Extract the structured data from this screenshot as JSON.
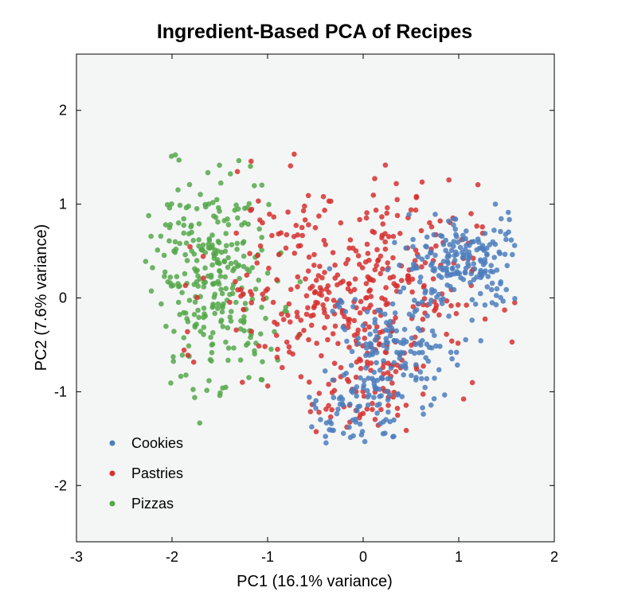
{
  "chart_data": {
    "type": "scatter",
    "title": "Ingredient-Based PCA of Recipes",
    "xlabel": "PC1 (16.1% variance)",
    "ylabel": "PC2 (7.6% variance)",
    "xlim": [
      -3,
      2
    ],
    "ylim": [
      -2.6,
      2.6
    ],
    "x_ticks": [
      -3,
      -2,
      -1,
      0,
      1,
      2
    ],
    "y_ticks": [
      -2,
      -1,
      0,
      1,
      2
    ],
    "grid": false,
    "legend_position": "bottom-left",
    "plot_background": "#f4f6f6",
    "series": [
      {
        "name": "Cookies",
        "color": "#4c7ebd",
        "clusters": [
          {
            "cx": 1.05,
            "cy": 0.4,
            "sx": 0.3,
            "sy": 0.25,
            "n": 190
          },
          {
            "cx": 0.35,
            "cy": -0.55,
            "sx": 0.35,
            "sy": 0.35,
            "n": 150
          },
          {
            "cx": -0.1,
            "cy": -1.15,
            "sx": 0.3,
            "sy": 0.2,
            "n": 70
          }
        ]
      },
      {
        "name": "Pastries",
        "color": "#d7302f",
        "clusters": [
          {
            "cx": -0.5,
            "cy": 0.1,
            "sx": 0.55,
            "sy": 0.5,
            "n": 220
          },
          {
            "cx": 0.3,
            "cy": 0.1,
            "sx": 0.45,
            "sy": 0.55,
            "n": 170
          },
          {
            "cx": 0.0,
            "cy": -1.0,
            "sx": 0.3,
            "sy": 0.3,
            "n": 60
          }
        ]
      },
      {
        "name": "Pizzas",
        "color": "#55a84a",
        "clusters": [
          {
            "cx": -1.6,
            "cy": 0.4,
            "sx": 0.3,
            "sy": 0.5,
            "n": 240
          },
          {
            "cx": -1.4,
            "cy": -0.5,
            "sx": 0.3,
            "sy": 0.35,
            "n": 60
          }
        ]
      }
    ]
  }
}
